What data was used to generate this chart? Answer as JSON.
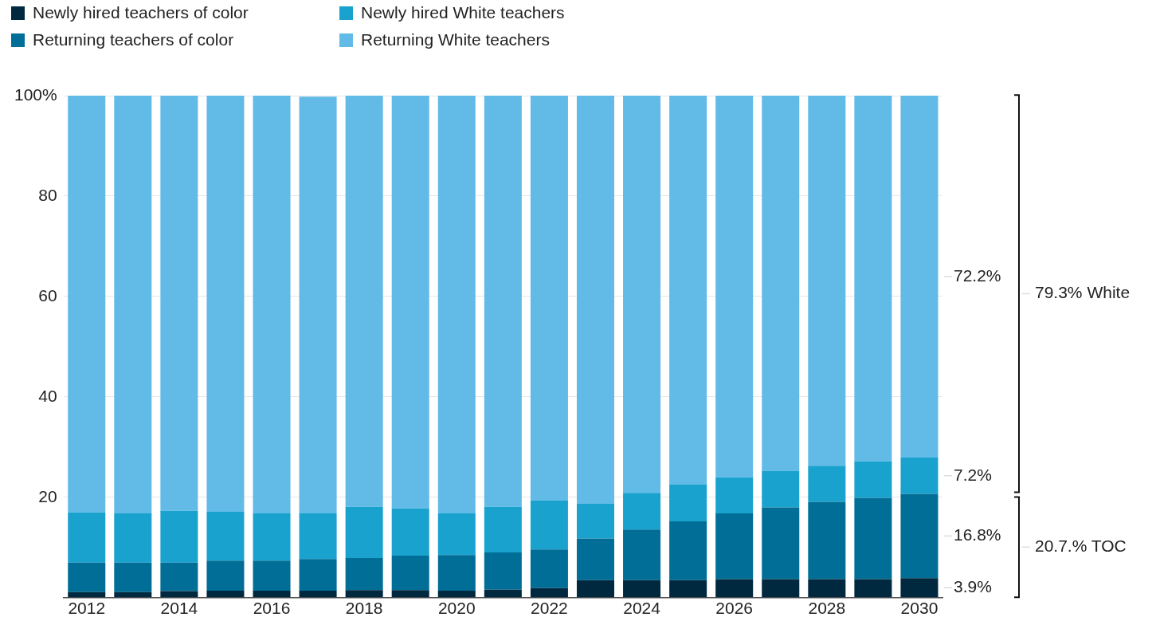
{
  "chart_data": {
    "type": "bar",
    "stacked": true,
    "legend": "top left",
    "grid": "y",
    "categories": [
      "2012",
      null,
      "2014",
      null,
      "2016",
      null,
      "2018",
      null,
      "2020",
      null,
      "2022",
      null,
      "2024",
      null,
      "2026",
      null,
      "2028",
      null,
      "2030"
    ],
    "ylim": [
      0,
      100
    ],
    "yticks": [
      {
        "value": 0,
        "label": null
      },
      20,
      40,
      60,
      80,
      {
        "value": 100,
        "label": "100%"
      }
    ],
    "series": [
      {
        "name": "Newly hired teachers of color",
        "color": "#00293f",
        "values": [
          1.1,
          1.1,
          1.3,
          1.4,
          1.4,
          1.4,
          1.5,
          1.5,
          1.4,
          1.6,
          1.9,
          3.5,
          3.5,
          3.5,
          3.7,
          3.7,
          3.7,
          3.7,
          3.9
        ],
        "value_labels": [
          null,
          null,
          null,
          null,
          null,
          null,
          null,
          null,
          null,
          null,
          null,
          null,
          null,
          null,
          null,
          null,
          null,
          null,
          "3.9%"
        ]
      },
      {
        "name": "Returning teachers of color",
        "color": "#006e97",
        "values": [
          5.9,
          5.9,
          5.7,
          6.0,
          6.0,
          6.3,
          6.4,
          6.9,
          7.1,
          7.4,
          7.7,
          8.3,
          10.1,
          11.7,
          13.1,
          14.3,
          15.4,
          16.2,
          16.8
        ],
        "value_labels": [
          null,
          null,
          null,
          null,
          null,
          null,
          null,
          null,
          null,
          null,
          null,
          null,
          null,
          null,
          null,
          null,
          null,
          null,
          "16.8%"
        ]
      },
      {
        "name": "Newly hired White teachers",
        "color": "#1aa2cf",
        "values": [
          10.0,
          9.8,
          10.3,
          9.7,
          9.4,
          9.1,
          10.2,
          9.4,
          8.3,
          9.1,
          9.8,
          6.9,
          7.3,
          7.3,
          7.2,
          7.3,
          7.2,
          7.3,
          7.2
        ],
        "value_labels": [
          null,
          null,
          null,
          null,
          null,
          null,
          null,
          null,
          null,
          null,
          null,
          null,
          null,
          null,
          null,
          null,
          null,
          null,
          "7.2%"
        ]
      },
      {
        "name": "Returning White teachers",
        "color": "#62bbe7",
        "values": [
          83.0,
          83.2,
          82.7,
          82.9,
          83.2,
          83.0,
          81.9,
          82.2,
          83.2,
          81.9,
          80.6,
          81.3,
          79.1,
          77.5,
          76.0,
          74.7,
          73.7,
          72.8,
          72.2
        ],
        "value_labels": [
          null,
          null,
          null,
          null,
          null,
          null,
          null,
          null,
          null,
          null,
          null,
          null,
          null,
          null,
          null,
          null,
          null,
          null,
          "72.2%"
        ]
      }
    ],
    "annotations": [
      "79.3% White",
      "20.7.% TOC"
    ]
  }
}
